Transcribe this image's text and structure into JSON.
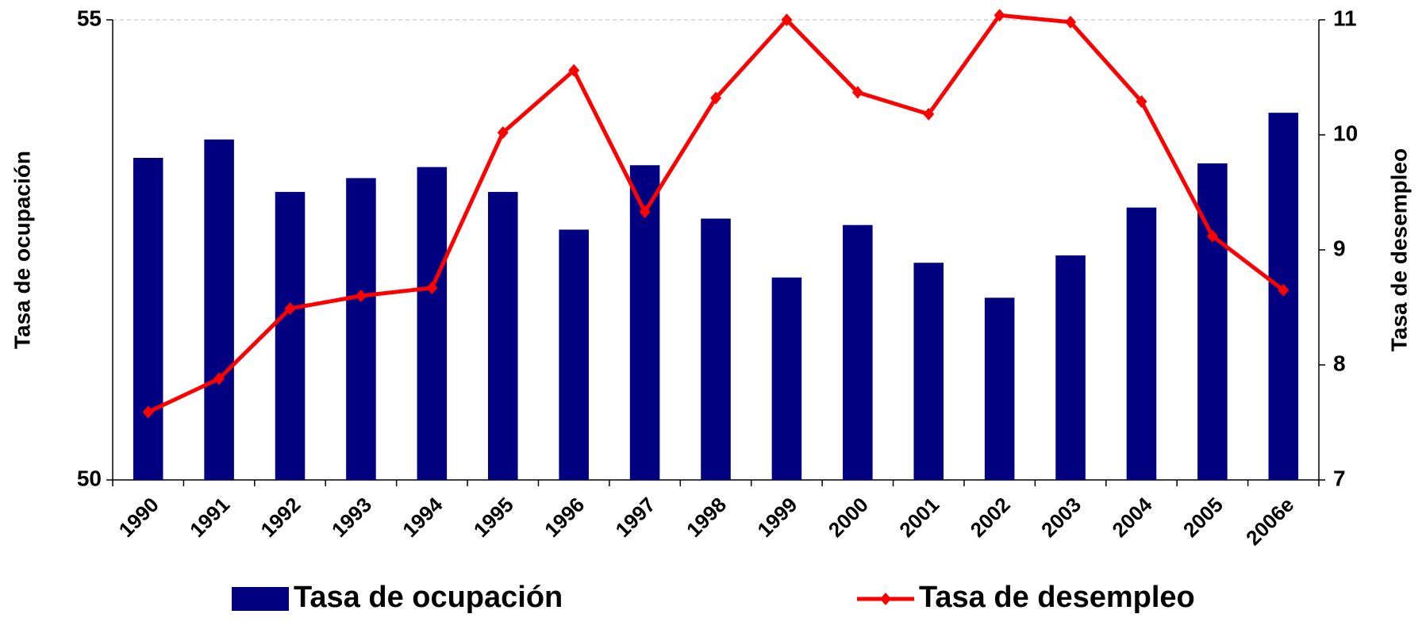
{
  "chart_data": {
    "type": "bar-line",
    "categories": [
      "1990",
      "1991",
      "1992",
      "1993",
      "1994",
      "1995",
      "1996",
      "1997",
      "1998",
      "1999",
      "2000",
      "2001",
      "2002",
      "2003",
      "2004",
      "2005",
      "2006e"
    ],
    "series": [
      {
        "name": "Tasa de ocupación",
        "type": "bar",
        "color": "#000080",
        "values": [
          53.5,
          53.7,
          53.13,
          53.28,
          53.4,
          53.13,
          52.72,
          53.42,
          52.84,
          52.2,
          52.77,
          52.36,
          51.98,
          52.44,
          52.96,
          53.44,
          53.99
        ]
      },
      {
        "name": "Tasa de desempleo",
        "type": "line",
        "axis": "y2",
        "color": "#ff0000",
        "values": [
          7.59,
          7.88,
          8.49,
          8.6,
          8.67,
          10.02,
          10.56,
          9.33,
          10.32,
          11.0,
          10.37,
          10.18,
          11.04,
          10.98,
          10.29,
          9.12,
          8.65
        ]
      }
    ],
    "y_label": "Tasa de ocupación",
    "y2_label": "Tasa de desempleo",
    "ylim": [
      50,
      55
    ],
    "yticks": [
      50,
      55
    ],
    "y2lim": [
      7,
      11
    ],
    "y2ticks": [
      7,
      8,
      9,
      10,
      11
    ],
    "grid": true,
    "legend": "bottom"
  }
}
